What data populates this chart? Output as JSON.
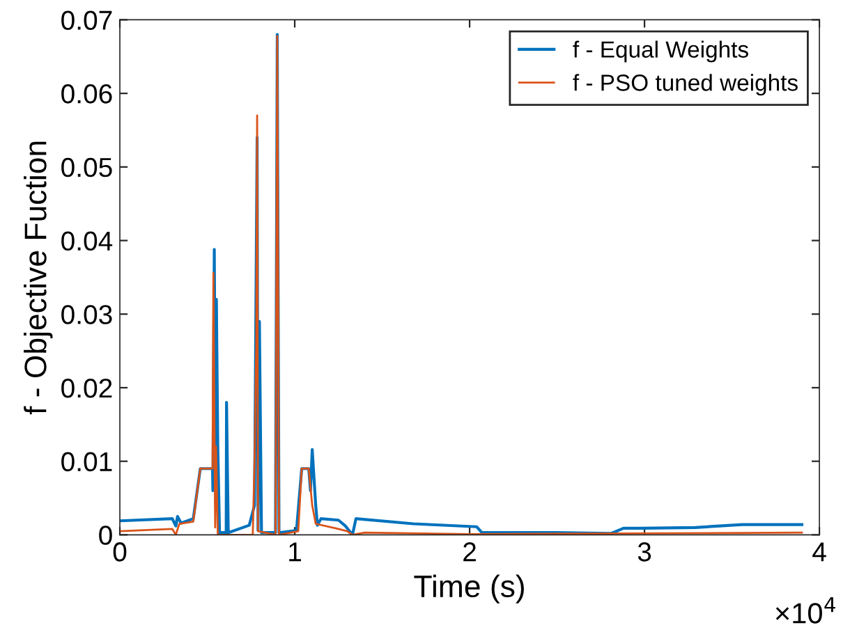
{
  "chart_data": {
    "type": "line",
    "xlabel": "Time (s)",
    "ylabel": "f - Objective Fuction",
    "annotations": [
      "×10$^{4}$"
    ],
    "xlim": [
      0,
      4
    ],
    "xticks": [
      0,
      1,
      2,
      3,
      4
    ],
    "ylim": [
      0,
      0.07
    ],
    "yticks": [
      0,
      0.01,
      0.02,
      0.03,
      0.04,
      0.05,
      0.06,
      0.07
    ],
    "legend": "top right",
    "grid": false,
    "marker": "none",
    "line_style": "solid",
    "series": [
      {
        "name": "f - Equal Weights",
        "color": "#0072bd",
        "x": [
          0,
          0.3,
          0.32,
          0.33,
          0.35,
          0.42,
          0.44,
          0.46,
          0.53,
          0.532,
          0.54,
          0.548,
          0.552,
          0.56,
          0.57,
          0.608,
          0.61,
          0.62,
          0.74,
          0.77,
          0.785,
          0.79,
          0.798,
          0.81,
          0.89,
          0.9,
          0.91,
          1.01,
          1.04,
          1.08,
          1.09,
          1.1,
          1.12,
          1.13,
          1.15,
          1.25,
          1.29,
          1.33,
          1.35,
          1.68,
          2.04,
          2.07,
          2.49,
          2.81,
          2.88,
          2.98,
          3.29,
          3.56,
          3.9
        ],
        "values": [
          0.0019,
          0.0022,
          0.0012,
          0.0025,
          0.0016,
          0.0022,
          0.0056,
          0.009,
          0.009,
          0.006,
          0.0388,
          0.004,
          0.032,
          0.012,
          0.0003,
          0.0003,
          0.018,
          0.0003,
          0.0013,
          0.004,
          0.054,
          0.0006,
          0.029,
          0.0003,
          0.0003,
          0.068,
          0.0003,
          0.0006,
          0.009,
          0.009,
          0.006,
          0.0116,
          0.004,
          0.0013,
          0.0022,
          0.002,
          0.0012,
          0.0,
          0.0022,
          0.0015,
          0.0011,
          0.0003,
          0.0003,
          0.0002,
          0.0009,
          0.0009,
          0.001,
          0.0014,
          0.0014
        ]
      },
      {
        "name": "f - PSO tuned weights",
        "color": "#d95319",
        "x": [
          0,
          0.3,
          0.32,
          0.34,
          0.42,
          0.44,
          0.46,
          0.53,
          0.535,
          0.545,
          0.55,
          0.56,
          0.76,
          0.77,
          0.78,
          0.785,
          0.79,
          0.89,
          0.9,
          0.91,
          1.02,
          1.04,
          1.08,
          1.1,
          1.12,
          1.25,
          1.3,
          1.33,
          1.4,
          2.0,
          3.9
        ],
        "values": [
          0.0005,
          0.0008,
          0.0,
          0.0015,
          0.0018,
          0.0055,
          0.009,
          0.009,
          0.0356,
          0.001,
          0.012,
          0.0,
          0.0,
          0.01,
          0.0256,
          0.057,
          0.0005,
          0.0,
          0.0678,
          0.0,
          0.0005,
          0.009,
          0.009,
          0.004,
          0.0015,
          0.0008,
          0.0005,
          0.0,
          0.0003,
          0.0001,
          0.0003
        ]
      }
    ]
  }
}
